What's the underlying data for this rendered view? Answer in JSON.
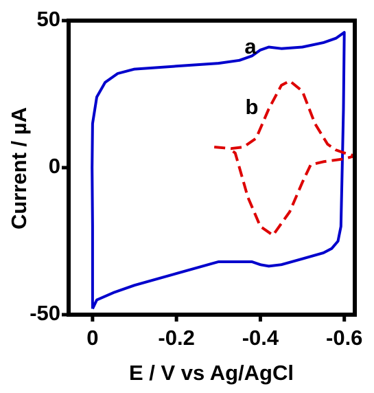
{
  "chart_data": {
    "type": "line",
    "xlabel": "E / V vs Ag/AgCl",
    "ylabel": "Current / µA",
    "xlim": [
      0.057,
      -0.625
    ],
    "ylim": [
      -50,
      50
    ],
    "xticks": [
      0,
      -0.2,
      -0.4,
      -0.6
    ],
    "yticks": [
      -50,
      0,
      50
    ],
    "series": [
      {
        "name": "a",
        "color": "#0000cc",
        "line_style": "solid",
        "x": [
          0,
          0,
          0.001,
          0,
          -0.01,
          -0.03,
          -0.06,
          -0.1,
          -0.2,
          -0.3,
          -0.35,
          -0.38,
          -0.4,
          -0.42,
          -0.45,
          -0.5,
          -0.55,
          -0.58,
          -0.6,
          -0.598,
          -0.595,
          -0.592,
          -0.585,
          -0.57,
          -0.55,
          -0.5,
          -0.45,
          -0.42,
          -0.4,
          -0.38,
          -0.3,
          -0.2,
          -0.1,
          -0.05,
          -0.01,
          0
        ],
        "y": [
          -48,
          -20,
          0,
          15,
          24,
          29,
          32,
          33.5,
          34.5,
          35.5,
          36.5,
          38,
          40,
          41,
          40.5,
          41,
          42.5,
          44,
          46,
          20,
          0,
          -20,
          -25,
          -27.5,
          -29,
          -31,
          -33,
          -33.5,
          -33,
          -32,
          -32,
          -36,
          -40,
          -42.5,
          -45,
          -48
        ]
      },
      {
        "name": "b",
        "color": "#dd0000",
        "line_style": "dashed",
        "x": [
          -0.29,
          -0.33,
          -0.36,
          -0.39,
          -0.42,
          -0.45,
          -0.47,
          -0.5,
          -0.53,
          -0.56,
          -0.58,
          -0.6,
          -0.625,
          -0.6,
          -0.55,
          -0.52,
          -0.5,
          -0.47,
          -0.43,
          -0.4,
          -0.37,
          -0.35,
          -0.34,
          -0.33
        ],
        "y": [
          7,
          6.5,
          7,
          10,
          20,
          28,
          29.5,
          26,
          15,
          8,
          6,
          5,
          4,
          3,
          2,
          1,
          -5,
          -15,
          -23,
          -20,
          -10,
          0,
          5,
          6
        ]
      }
    ]
  }
}
